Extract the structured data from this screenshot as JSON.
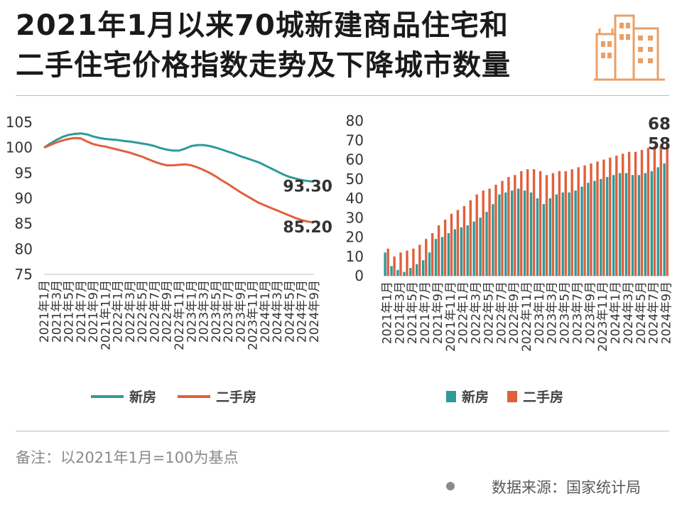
{
  "title": {
    "line1": "2021年1月以来70城新建商品住宅和",
    "line2": "二手住宅价格指数走势及下降城市数量"
  },
  "logo": {
    "icon": "city-buildings-icon",
    "color": "#e8a06a"
  },
  "note": "备注：以2021年1月=100为基点",
  "source": "数据来源：国家统计局",
  "colors": {
    "new_home": "#2f9a9a",
    "second_hand": "#e0603c",
    "rule": "#bcbcbc"
  },
  "chart_data": [
    {
      "type": "line",
      "ylim": [
        75,
        105
      ],
      "yticks": [
        75,
        80,
        85,
        90,
        95,
        100,
        105
      ],
      "x": [
        "2021年1月",
        "2021年2月",
        "2021年3月",
        "2021年4月",
        "2021年5月",
        "2021年6月",
        "2021年7月",
        "2021年8月",
        "2021年9月",
        "2021年10月",
        "2021年11月",
        "2021年12月",
        "2022年1月",
        "2022年2月",
        "2022年3月",
        "2022年4月",
        "2022年5月",
        "2022年6月",
        "2022年7月",
        "2022年8月",
        "2022年9月",
        "2022年10月",
        "2022年11月",
        "2022年12月",
        "2023年1月",
        "2023年2月",
        "2023年3月",
        "2023年4月",
        "2023年5月",
        "2023年6月",
        "2023年7月",
        "2023年8月",
        "2023年9月",
        "2023年10月",
        "2023年11月",
        "2023年12月",
        "2024年1月",
        "2024年2月",
        "2024年3月",
        "2024年4月",
        "2024年5月",
        "2024年6月",
        "2024年7月",
        "2024年8月",
        "2024年9月"
      ],
      "xticks": [
        "2021年1月",
        "2021年3月",
        "2021年5月",
        "2021年7月",
        "2021年9月",
        "2021年11月",
        "2022年1月",
        "2022年3月",
        "2022年5月",
        "2022年7月",
        "2022年9月",
        "2022年11月",
        "2023年1月",
        "2023年3月",
        "2023年5月",
        "2023年7月",
        "2023年9月",
        "2023年11月",
        "2024年1月",
        "2024年3月",
        "2024年5月",
        "2024年7月",
        "2024年9月"
      ],
      "series": [
        {
          "name": "新房",
          "color": "#2f9a9a",
          "values": [
            100,
            100.8,
            101.5,
            102.1,
            102.5,
            102.7,
            102.8,
            102.6,
            102.2,
            101.9,
            101.7,
            101.6,
            101.5,
            101.3,
            101.2,
            101.0,
            100.8,
            100.6,
            100.3,
            99.9,
            99.6,
            99.4,
            99.4,
            99.8,
            100.3,
            100.5,
            100.5,
            100.3,
            100.0,
            99.6,
            99.2,
            98.8,
            98.3,
            97.9,
            97.5,
            97.1,
            96.5,
            95.9,
            95.3,
            94.7,
            94.2,
            93.9,
            93.6,
            93.4,
            93.3
          ],
          "end_label": "93.30"
        },
        {
          "name": "二手房",
          "color": "#e0603c",
          "values": [
            100,
            100.5,
            101.0,
            101.4,
            101.7,
            101.9,
            101.8,
            101.2,
            100.7,
            100.4,
            100.2,
            99.9,
            99.6,
            99.3,
            99.0,
            98.6,
            98.2,
            97.7,
            97.2,
            96.8,
            96.5,
            96.5,
            96.6,
            96.7,
            96.5,
            96.1,
            95.6,
            95.0,
            94.3,
            93.5,
            92.8,
            92.0,
            91.2,
            90.5,
            89.8,
            89.1,
            88.6,
            88.1,
            87.6,
            87.1,
            86.6,
            86.1,
            85.7,
            85.4,
            85.2
          ],
          "end_label": "85.20"
        }
      ],
      "legend": {
        "position": "bottom",
        "entries": [
          "新房",
          "二手房"
        ]
      }
    },
    {
      "type": "bar",
      "ylim": [
        0,
        80
      ],
      "yticks": [
        0,
        10,
        20,
        30,
        40,
        50,
        60,
        70,
        80
      ],
      "categories": [
        "2021年1月",
        "2021年2月",
        "2021年3月",
        "2021年4月",
        "2021年5月",
        "2021年6月",
        "2021年7月",
        "2021年8月",
        "2021年9月",
        "2021年10月",
        "2021年11月",
        "2021年12月",
        "2022年1月",
        "2022年2月",
        "2022年3月",
        "2022年4月",
        "2022年5月",
        "2022年6月",
        "2022年7月",
        "2022年8月",
        "2022年9月",
        "2022年10月",
        "2022年11月",
        "2022年12月",
        "2023年1月",
        "2023年2月",
        "2023年3月",
        "2023年4月",
        "2023年5月",
        "2023年6月",
        "2023年7月",
        "2023年8月",
        "2023年9月",
        "2023年10月",
        "2023年11月",
        "2023年12月",
        "2024年1月",
        "2024年2月",
        "2024年3月",
        "2024年4月",
        "2024年5月",
        "2024年6月",
        "2024年7月",
        "2024年8月",
        "2024年9月"
      ],
      "xticks": [
        "2021年1月",
        "2021年3月",
        "2021年5月",
        "2021年7月",
        "2021年9月",
        "2021年11月",
        "2022年1月",
        "2022年3月",
        "2022年5月",
        "2022年7月",
        "2022年9月",
        "2022年11月",
        "2023年1月",
        "2023年3月",
        "2023年5月",
        "2023年7月",
        "2023年9月",
        "2023年11月",
        "2024年1月",
        "2024年3月",
        "2024年5月",
        "2024年7月",
        "2024年9月"
      ],
      "series": [
        {
          "name": "新房",
          "color": "#2f9a9a",
          "values": [
            12,
            5,
            3,
            2,
            4,
            6,
            8,
            12,
            19,
            20,
            22,
            24,
            25,
            26,
            28,
            30,
            33,
            37,
            42,
            43,
            44,
            45,
            44,
            43,
            40,
            37,
            40,
            42,
            43,
            43,
            44,
            46,
            48,
            49,
            50,
            51,
            52,
            53,
            53,
            52,
            52,
            53,
            54,
            56,
            58
          ],
          "end_label": "58"
        },
        {
          "name": "二手房",
          "color": "#e0603c",
          "values": [
            14,
            10,
            12,
            13,
            14,
            16,
            19,
            22,
            26,
            29,
            32,
            34,
            36,
            39,
            42,
            44,
            45,
            47,
            49,
            51,
            52,
            54,
            55,
            55,
            54,
            52,
            53,
            54,
            54,
            55,
            56,
            57,
            58,
            59,
            60,
            61,
            62,
            63,
            64,
            64,
            65,
            66,
            67,
            67,
            68
          ],
          "end_label": "68"
        }
      ],
      "legend": {
        "position": "bottom",
        "entries": [
          "新房",
          "二手房"
        ]
      }
    }
  ]
}
